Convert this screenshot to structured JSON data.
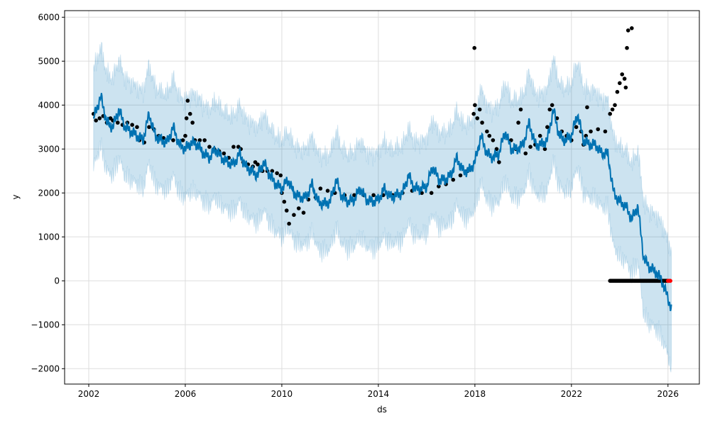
{
  "chart_data": {
    "type": "line",
    "title": "",
    "xlabel": "ds",
    "ylabel": "y",
    "xlim": [
      2001.0,
      2027.3
    ],
    "ylim": [
      -2350,
      6150
    ],
    "grid": true,
    "x_ticks": [
      2002,
      2006,
      2010,
      2014,
      2018,
      2022,
      2026
    ],
    "x_tick_labels": [
      "2002",
      "2006",
      "2010",
      "2014",
      "2018",
      "2022",
      "2026"
    ],
    "y_ticks": [
      -2000,
      -1000,
      0,
      1000,
      2000,
      3000,
      4000,
      5000,
      6000
    ],
    "y_tick_labels": [
      "−2000",
      "−1000",
      "0",
      "1000",
      "2000",
      "3000",
      "4000",
      "5000",
      "6000"
    ],
    "colors": {
      "forecast": "#0072B2",
      "interval": "#0072B2",
      "observed": "#000000",
      "highlight": "#ff0000",
      "grid": "#dddddd"
    },
    "forecast": {
      "name": "yhat",
      "x": [
        2002.2,
        2002.5,
        2002.75,
        2003,
        2003.25,
        2003.5,
        2003.75,
        2004,
        2004.25,
        2004.5,
        2004.75,
        2005,
        2005.25,
        2005.5,
        2005.75,
        2006,
        2006.25,
        2006.5,
        2006.75,
        2007,
        2007.25,
        2007.5,
        2007.75,
        2008,
        2008.25,
        2008.5,
        2008.75,
        2009,
        2009.25,
        2009.5,
        2009.75,
        2010,
        2010.25,
        2010.5,
        2010.75,
        2011,
        2011.25,
        2011.5,
        2011.75,
        2012,
        2012.25,
        2012.5,
        2012.75,
        2013,
        2013.25,
        2013.5,
        2013.75,
        2014,
        2014.25,
        2014.5,
        2014.75,
        2015,
        2015.25,
        2015.5,
        2015.75,
        2016,
        2016.25,
        2016.5,
        2016.75,
        2017,
        2017.25,
        2017.5,
        2017.75,
        2018,
        2018.25,
        2018.5,
        2018.75,
        2019,
        2019.25,
        2019.5,
        2019.75,
        2020,
        2020.25,
        2020.5,
        2020.75,
        2021,
        2021.25,
        2021.5,
        2021.75,
        2022,
        2022.25,
        2022.5,
        2022.75,
        2023,
        2023.25,
        2023.5,
        2023.75,
        2024,
        2024.25,
        2024.5,
        2024.75,
        2025,
        2025.25,
        2025.5,
        2025.75,
        2026,
        2026.15
      ],
      "y": [
        3700,
        4200,
        3600,
        3500,
        3900,
        3500,
        3400,
        3300,
        3200,
        3800,
        3300,
        3200,
        3150,
        3500,
        3100,
        3000,
        3150,
        3100,
        2900,
        2800,
        3000,
        2800,
        2700,
        2650,
        2900,
        2600,
        2500,
        2400,
        2700,
        2400,
        2200,
        2100,
        2300,
        2000,
        1900,
        1900,
        2200,
        1800,
        1750,
        1800,
        2300,
        1900,
        1800,
        1850,
        2100,
        1850,
        1800,
        1850,
        2100,
        1900,
        1950,
        2000,
        2400,
        2100,
        2100,
        2150,
        2600,
        2300,
        2300,
        2400,
        2800,
        2500,
        2500,
        2700,
        3300,
        2900,
        2800,
        2900,
        3400,
        3000,
        3000,
        3100,
        3600,
        3100,
        3100,
        3200,
        3900,
        3300,
        3200,
        3300,
        3800,
        3200,
        3100,
        3100,
        2900,
        2900,
        2000,
        1800,
        1700,
        1400,
        1700,
        500,
        300,
        200,
        0,
        -400,
        -650
      ]
    },
    "interval_halfwidth": {
      "x": [
        2002,
        2018,
        2026.2
      ],
      "y": [
        1100,
        1050,
        1300
      ]
    },
    "observed": [
      [
        2002.2,
        3800
      ],
      [
        2002.3,
        3650
      ],
      [
        2002.45,
        3700
      ],
      [
        2002.6,
        3750
      ],
      [
        2002.75,
        3600
      ],
      [
        2002.9,
        3700
      ],
      [
        2003.0,
        3650
      ],
      [
        2003.2,
        3600
      ],
      [
        2003.4,
        3550
      ],
      [
        2003.6,
        3600
      ],
      [
        2003.8,
        3550
      ],
      [
        2004.0,
        3500
      ],
      [
        2004.1,
        3200
      ],
      [
        2004.3,
        3150
      ],
      [
        2004.5,
        3500
      ],
      [
        2004.7,
        3450
      ],
      [
        2004.9,
        3300
      ],
      [
        2005.1,
        3250
      ],
      [
        2005.3,
        3250
      ],
      [
        2005.5,
        3200
      ],
      [
        2005.7,
        3150
      ],
      [
        2005.9,
        3200
      ],
      [
        2006.0,
        3300
      ],
      [
        2006.05,
        3700
      ],
      [
        2006.1,
        4100
      ],
      [
        2006.2,
        3800
      ],
      [
        2006.3,
        3600
      ],
      [
        2006.4,
        3200
      ],
      [
        2006.6,
        3200
      ],
      [
        2006.8,
        3200
      ],
      [
        2007.0,
        3050
      ],
      [
        2007.2,
        3000
      ],
      [
        2007.4,
        2950
      ],
      [
        2007.6,
        2900
      ],
      [
        2007.8,
        2800
      ],
      [
        2008.0,
        3050
      ],
      [
        2008.2,
        3050
      ],
      [
        2008.3,
        3000
      ],
      [
        2008.4,
        2700
      ],
      [
        2008.6,
        2650
      ],
      [
        2008.8,
        2600
      ],
      [
        2008.9,
        2700
      ],
      [
        2009.0,
        2650
      ],
      [
        2009.2,
        2500
      ],
      [
        2009.4,
        2500
      ],
      [
        2009.6,
        2500
      ],
      [
        2009.8,
        2450
      ],
      [
        2009.95,
        2400
      ],
      [
        2010.0,
        2000
      ],
      [
        2010.1,
        1800
      ],
      [
        2010.2,
        1600
      ],
      [
        2010.3,
        1300
      ],
      [
        2010.5,
        1500
      ],
      [
        2010.7,
        1650
      ],
      [
        2010.9,
        1550
      ],
      [
        2011.1,
        1850
      ],
      [
        2011.4,
        1900
      ],
      [
        2011.6,
        2100
      ],
      [
        2011.9,
        2050
      ],
      [
        2012.2,
        2000
      ],
      [
        2012.6,
        1950
      ],
      [
        2013.0,
        1950
      ],
      [
        2013.4,
        1950
      ],
      [
        2013.8,
        1950
      ],
      [
        2014.2,
        1950
      ],
      [
        2014.6,
        1950
      ],
      [
        2015.0,
        2000
      ],
      [
        2015.4,
        2050
      ],
      [
        2015.8,
        2000
      ],
      [
        2016.2,
        2000
      ],
      [
        2016.5,
        2150
      ],
      [
        2016.8,
        2200
      ],
      [
        2017.1,
        2300
      ],
      [
        2017.4,
        2400
      ],
      [
        2017.7,
        2500
      ],
      [
        2017.95,
        3800
      ],
      [
        2018.0,
        4000
      ],
      [
        2017.98,
        5300
      ],
      [
        2018.1,
        3700
      ],
      [
        2018.2,
        3900
      ],
      [
        2018.3,
        3600
      ],
      [
        2018.5,
        3400
      ],
      [
        2018.6,
        3300
      ],
      [
        2018.75,
        3200
      ],
      [
        2018.9,
        3000
      ],
      [
        2019.0,
        2700
      ],
      [
        2019.5,
        3200
      ],
      [
        2019.7,
        3000
      ],
      [
        2019.8,
        3600
      ],
      [
        2019.9,
        3900
      ],
      [
        2020.1,
        2900
      ],
      [
        2020.3,
        3050
      ],
      [
        2020.5,
        3100
      ],
      [
        2020.7,
        3300
      ],
      [
        2020.9,
        3000
      ],
      [
        2021.0,
        3500
      ],
      [
        2021.1,
        3900
      ],
      [
        2021.2,
        4000
      ],
      [
        2021.4,
        3700
      ],
      [
        2021.6,
        3400
      ],
      [
        2021.8,
        3300
      ],
      [
        2022.0,
        3200
      ],
      [
        2022.2,
        3500
      ],
      [
        2022.4,
        3400
      ],
      [
        2022.5,
        3100
      ],
      [
        2022.6,
        3300
      ],
      [
        2022.65,
        3950
      ],
      [
        2022.8,
        3400
      ],
      [
        2023.1,
        3450
      ],
      [
        2023.4,
        3400
      ],
      [
        2023.6,
        3800
      ],
      [
        2023.7,
        3900
      ],
      [
        2023.8,
        4000
      ],
      [
        2023.9,
        4300
      ],
      [
        2024.0,
        4500
      ],
      [
        2024.1,
        4700
      ],
      [
        2024.2,
        4600
      ],
      [
        2024.25,
        4400
      ],
      [
        2024.3,
        5300
      ],
      [
        2024.35,
        5700
      ],
      [
        2024.5,
        5750
      ]
    ],
    "zero_series": {
      "x_start": 2023.6,
      "x_end": 2026.0,
      "value": 0
    },
    "highlight_series": {
      "x_start": 2026.0,
      "x_end": 2026.1,
      "value": 0
    }
  }
}
